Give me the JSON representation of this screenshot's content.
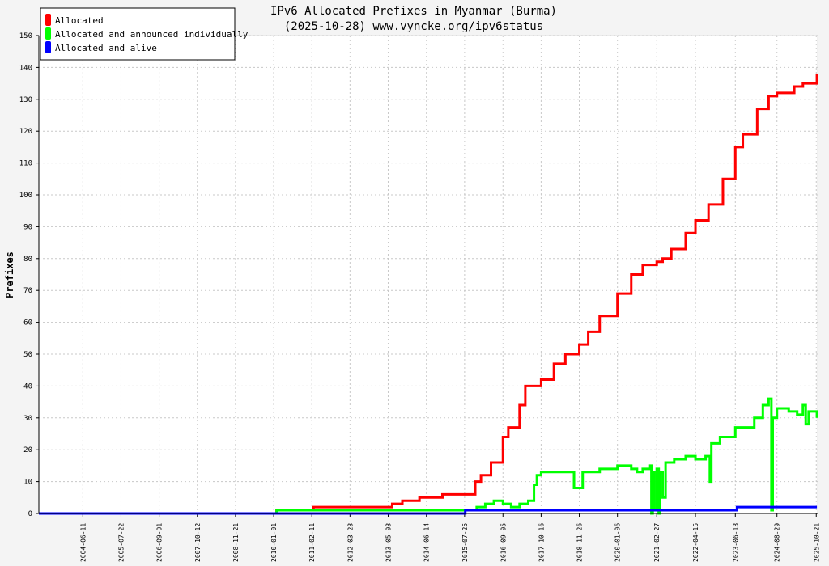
{
  "chart_data": {
    "type": "line",
    "title": "IPv6 Allocated Prefixes in Myanmar (Burma)",
    "subtitle": "(2025-10-28) www.vyncke.org/ipv6status",
    "xlabel": "",
    "ylabel": "Prefixes",
    "ylim": [
      0,
      150
    ],
    "xlim": [
      "2003-03-01",
      "2025-11-05"
    ],
    "y_ticks": [
      0,
      10,
      20,
      30,
      40,
      50,
      60,
      70,
      80,
      90,
      100,
      110,
      120,
      130,
      140,
      150
    ],
    "x_ticks": [
      "2004-06-11",
      "2005-07-22",
      "2006-09-01",
      "2007-10-12",
      "2008-11-21",
      "2010-01-01",
      "2011-02-11",
      "2012-03-23",
      "2013-05-03",
      "2014-06-14",
      "2015-07-25",
      "2016-09-05",
      "2017-10-16",
      "2018-11-26",
      "2020-01-06",
      "2021-02-27",
      "2022-04-15",
      "2023-06-13",
      "2024-08-29",
      "2025-10-21"
    ],
    "grid": true,
    "legend_position": "top-left",
    "series": [
      {
        "name": "Allocated",
        "color": "#ff0000",
        "points": [
          [
            "2003-03-01",
            0
          ],
          [
            "2010-01-01",
            0
          ],
          [
            "2010-02-01",
            1
          ],
          [
            "2011-02-11",
            1
          ],
          [
            "2011-03-01",
            2
          ],
          [
            "2013-05-03",
            2
          ],
          [
            "2013-06-15",
            3
          ],
          [
            "2013-10-01",
            4
          ],
          [
            "2014-04-01",
            5
          ],
          [
            "2014-11-01",
            5
          ],
          [
            "2014-12-01",
            6
          ],
          [
            "2015-10-10",
            6
          ],
          [
            "2015-11-15",
            10
          ],
          [
            "2016-01-15",
            12
          ],
          [
            "2016-05-01",
            16
          ],
          [
            "2016-09-05",
            24
          ],
          [
            "2016-11-01",
            27
          ],
          [
            "2017-03-01",
            34
          ],
          [
            "2017-05-01",
            40
          ],
          [
            "2017-10-16",
            42
          ],
          [
            "2018-03-01",
            47
          ],
          [
            "2018-07-01",
            50
          ],
          [
            "2018-11-26",
            53
          ],
          [
            "2019-03-01",
            57
          ],
          [
            "2019-07-01",
            62
          ],
          [
            "2020-01-06",
            69
          ],
          [
            "2020-06-01",
            75
          ],
          [
            "2020-10-01",
            78
          ],
          [
            "2021-02-27",
            79
          ],
          [
            "2021-05-01",
            80
          ],
          [
            "2021-08-01",
            83
          ],
          [
            "2022-01-01",
            88
          ],
          [
            "2022-04-15",
            92
          ],
          [
            "2022-09-01",
            97
          ],
          [
            "2023-02-01",
            105
          ],
          [
            "2023-06-13",
            115
          ],
          [
            "2023-09-01",
            119
          ],
          [
            "2024-02-01",
            127
          ],
          [
            "2024-06-01",
            131
          ],
          [
            "2024-08-29",
            132
          ],
          [
            "2025-03-01",
            134
          ],
          [
            "2025-06-01",
            135
          ],
          [
            "2025-10-28",
            138
          ]
        ]
      },
      {
        "name": "Allocated and announced individually",
        "color": "#00ff00",
        "points": [
          [
            "2003-03-01",
            0
          ],
          [
            "2010-01-01",
            0
          ],
          [
            "2010-02-01",
            1
          ],
          [
            "2015-10-10",
            1
          ],
          [
            "2015-12-01",
            2
          ],
          [
            "2016-03-01",
            3
          ],
          [
            "2016-06-01",
            4
          ],
          [
            "2016-09-05",
            3
          ],
          [
            "2016-12-01",
            2
          ],
          [
            "2017-03-01",
            3
          ],
          [
            "2017-06-01",
            4
          ],
          [
            "2017-08-01",
            9
          ],
          [
            "2017-09-01",
            12
          ],
          [
            "2017-10-16",
            13
          ],
          [
            "2018-09-15",
            13
          ],
          [
            "2018-10-01",
            8
          ],
          [
            "2019-01-01",
            13
          ],
          [
            "2019-07-01",
            14
          ],
          [
            "2020-01-06",
            15
          ],
          [
            "2020-06-01",
            14
          ],
          [
            "2020-08-01",
            13
          ],
          [
            "2020-10-01",
            14
          ],
          [
            "2020-12-20",
            15
          ],
          [
            "2021-01-01",
            0
          ],
          [
            "2021-01-15",
            13
          ],
          [
            "2021-02-01",
            1
          ],
          [
            "2021-02-27",
            14
          ],
          [
            "2021-03-20",
            0
          ],
          [
            "2021-04-01",
            13
          ],
          [
            "2021-05-01",
            5
          ],
          [
            "2021-06-01",
            16
          ],
          [
            "2021-09-01",
            17
          ],
          [
            "2022-01-01",
            18
          ],
          [
            "2022-04-15",
            17
          ],
          [
            "2022-08-01",
            18
          ],
          [
            "2022-09-15",
            10
          ],
          [
            "2022-10-01",
            22
          ],
          [
            "2023-01-01",
            24
          ],
          [
            "2023-06-13",
            27
          ],
          [
            "2023-10-01",
            27
          ],
          [
            "2024-01-01",
            30
          ],
          [
            "2024-04-01",
            34
          ],
          [
            "2024-06-01",
            36
          ],
          [
            "2024-07-01",
            1
          ],
          [
            "2024-07-15",
            30
          ],
          [
            "2024-08-29",
            33
          ],
          [
            "2025-01-01",
            32
          ],
          [
            "2025-04-01",
            31
          ],
          [
            "2025-06-01",
            34
          ],
          [
            "2025-07-01",
            28
          ],
          [
            "2025-08-01",
            32
          ],
          [
            "2025-10-28",
            30
          ]
        ]
      },
      {
        "name": "Allocated and alive",
        "color": "#0000ff",
        "points": [
          [
            "2003-03-01",
            0
          ],
          [
            "2015-07-25",
            0
          ],
          [
            "2015-08-01",
            1
          ],
          [
            "2023-06-13",
            1
          ],
          [
            "2023-07-01",
            2
          ],
          [
            "2025-10-28",
            2
          ]
        ]
      }
    ]
  }
}
